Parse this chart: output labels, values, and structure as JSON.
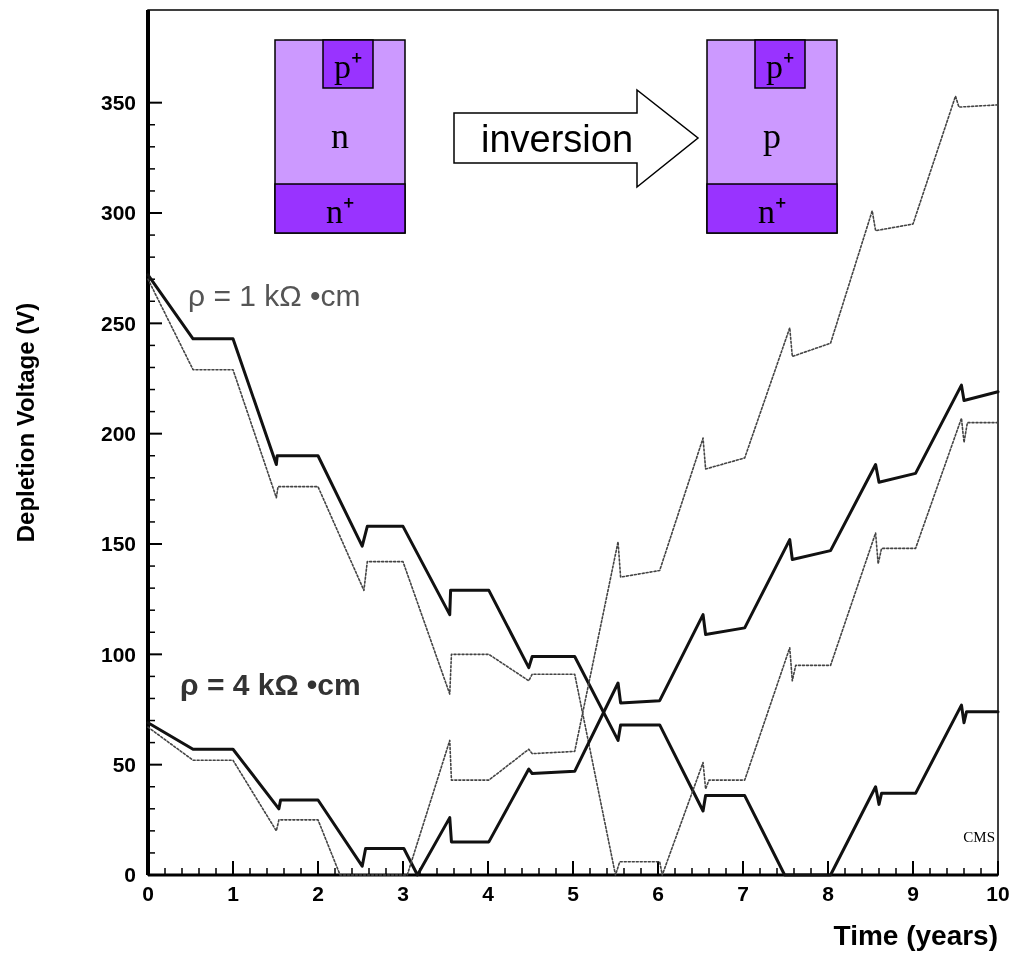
{
  "chart_data": {
    "type": "line",
    "xlabel": "Time (years)",
    "ylabel": "Depletion Voltage (V)",
    "xlim": [
      0,
      10
    ],
    "xticks": [
      0,
      1,
      2,
      3,
      4,
      5,
      6,
      7,
      8,
      9,
      10
    ],
    "ylim": [
      0,
      392
    ],
    "yticks": [
      0,
      50,
      100,
      150,
      200,
      250,
      300,
      350
    ],
    "grid": false,
    "series": [
      {
        "color": "#111111",
        "line_style": "solid",
        "x": [
          0,
          0.53,
          1,
          1.51,
          1.52,
          2,
          2.52,
          2.58,
          3,
          3.55,
          3.56,
          4.01,
          4.48,
          4.52,
          5.02,
          5.53,
          5.56,
          6.02,
          6.53,
          6.56,
          7.02,
          7.49,
          8.03,
          8.56,
          8.6,
          8.63,
          9.03,
          9.57,
          9.6,
          9.63,
          10
        ],
        "values": [
          272,
          243,
          243,
          186,
          190,
          190,
          149,
          158,
          158,
          118,
          129,
          129,
          94,
          99,
          99,
          61,
          68,
          68,
          29,
          36,
          36,
          0,
          0,
          40,
          32,
          37,
          37,
          77,
          69,
          74,
          74
        ]
      },
      {
        "color": "#444444",
        "line_style": "dotted",
        "x": [
          0,
          0.53,
          1,
          1.51,
          1.53,
          2,
          2.54,
          2.58,
          3,
          3.55,
          3.57,
          4.01,
          4.48,
          4.52,
          5.02,
          5.5,
          5.55,
          6.02,
          6.05,
          6.53,
          6.56,
          6.6,
          7.02,
          7.55,
          7.58,
          7.62,
          8.03,
          8.56,
          8.59,
          8.63,
          9.03,
          9.57,
          9.6,
          9.64,
          10
        ],
        "values": [
          270,
          229,
          229,
          171,
          176,
          176,
          129,
          142,
          142,
          82,
          100,
          100,
          88,
          91,
          91,
          0,
          6,
          6,
          0,
          51,
          39,
          43,
          43,
          103,
          88,
          95,
          95,
          155,
          141,
          148,
          148,
          207,
          196,
          205,
          205
        ]
      },
      {
        "color": "#111111",
        "line_style": "solid",
        "x": [
          0,
          0.53,
          1,
          1.54,
          1.56,
          2,
          2.52,
          2.56,
          3.01,
          3.17,
          3.55,
          3.57,
          4.01,
          4.48,
          4.52,
          5.02,
          5.53,
          5.56,
          6.02,
          6.53,
          6.56,
          7.02,
          7.55,
          7.58,
          8.03,
          8.56,
          8.6,
          9.03,
          9.57,
          9.6,
          10
        ],
        "values": [
          69,
          57,
          57,
          30,
          34,
          34,
          4,
          12,
          12,
          0,
          26,
          15,
          15,
          48,
          46,
          47,
          87,
          78,
          79,
          118,
          109,
          112,
          152,
          143,
          147,
          186,
          178,
          182,
          222,
          215,
          219
        ]
      },
      {
        "color": "#444444",
        "line_style": "dotted",
        "x": [
          0,
          0.53,
          1,
          1.51,
          1.54,
          2,
          2.26,
          3.05,
          3.55,
          3.57,
          4.01,
          4.48,
          4.52,
          5.02,
          5.53,
          5.56,
          6.02,
          6.53,
          6.56,
          7.02,
          7.55,
          7.58,
          8.03,
          8.52,
          8.56,
          9.0,
          9.5,
          9.54,
          10
        ],
        "values": [
          67,
          52,
          52,
          20,
          25,
          25,
          0,
          0,
          61,
          43,
          43,
          57,
          55,
          56,
          151,
          135,
          138,
          198,
          184,
          189,
          248,
          235,
          241,
          301,
          292,
          295,
          353,
          348,
          349
        ]
      }
    ],
    "annotations": [
      "ρ = 1 kΩ •cm",
      "ρ = 4 kΩ •cm",
      "CMS",
      "p⁺",
      "n",
      "n⁺",
      "inversion",
      "p⁺",
      "p",
      "n⁺"
    ]
  }
}
